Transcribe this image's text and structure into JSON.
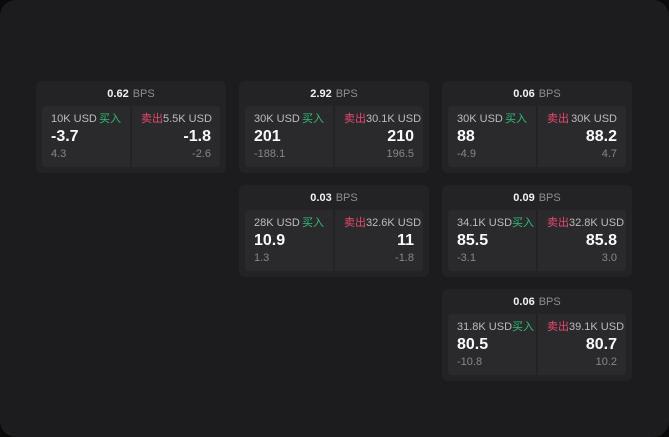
{
  "labels": {
    "bps_unit": "BPS",
    "buy": "买入",
    "sell": "卖出"
  },
  "colors": {
    "buy_text": "#2fbe76",
    "sell_text": "#e8486f",
    "window_bg": "#1c1c1e",
    "card_bg": "#232325",
    "panel_bg": "#2a2a2c"
  },
  "cards": [
    {
      "bps": "0.62",
      "col": 1,
      "row": 1,
      "buy": {
        "amount": "10K USD",
        "price": "-3.7",
        "delta": "4.3"
      },
      "sell": {
        "amount": "5.5K USD",
        "price": "-1.8",
        "delta": "-2.6"
      }
    },
    {
      "bps": "2.92",
      "col": 2,
      "row": 1,
      "buy": {
        "amount": "30K USD",
        "price": "201",
        "delta": "-188.1"
      },
      "sell": {
        "amount": "30.1K USD",
        "price": "210",
        "delta": "196.5"
      }
    },
    {
      "bps": "0.06",
      "col": 3,
      "row": 1,
      "buy": {
        "amount": "30K USD",
        "price": "88",
        "delta": "-4.9"
      },
      "sell": {
        "amount": "30K USD",
        "price": "88.2",
        "delta": "4.7"
      }
    },
    {
      "bps": "0.03",
      "col": 2,
      "row": 2,
      "buy": {
        "amount": "28K USD",
        "price": "10.9",
        "delta": "1.3"
      },
      "sell": {
        "amount": "32.6K USD",
        "price": "11",
        "delta": "-1.8"
      }
    },
    {
      "bps": "0.09",
      "col": 3,
      "row": 2,
      "buy": {
        "amount": "34.1K USD",
        "price": "85.5",
        "delta": "-3.1"
      },
      "sell": {
        "amount": "32.8K USD",
        "price": "85.8",
        "delta": "3.0"
      }
    },
    {
      "bps": "0.06",
      "col": 3,
      "row": 3,
      "buy": {
        "amount": "31.8K USD",
        "price": "80.5",
        "delta": "-10.8"
      },
      "sell": {
        "amount": "39.1K USD",
        "price": "80.7",
        "delta": "10.2"
      }
    }
  ]
}
